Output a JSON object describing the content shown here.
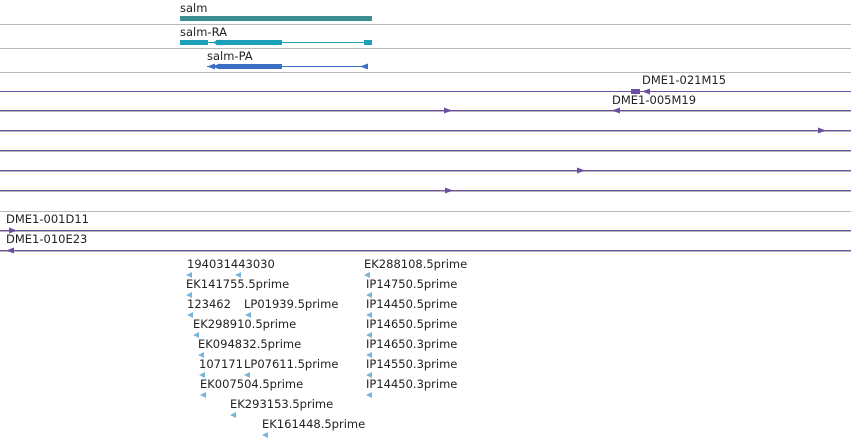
{
  "colors": {
    "gene": "#3a9090",
    "transcript_ra": "#1ba0b8",
    "transcript_pa": "#3a6fc4",
    "bac": "#6b4fa0",
    "est": "#7ab4d8",
    "separator": "#b8b8b8"
  },
  "genes": [
    {
      "label": "salm"
    },
    {
      "label": "salm-RA"
    },
    {
      "label": "salm-PA"
    }
  ],
  "clones": [
    {
      "label": "DME1-021M15"
    },
    {
      "label": "DME1-005M19"
    },
    {
      "label": "DME1-001D11"
    },
    {
      "label": "DME1-010E23"
    }
  ],
  "ests": [
    {
      "label": "194031443030"
    },
    {
      "label": "EK141755.5prime"
    },
    {
      "label": "123462"
    },
    {
      "label": "LP01939.5prime"
    },
    {
      "label": "EK298910.5prime"
    },
    {
      "label": "EK094832.5prime"
    },
    {
      "label": "107171"
    },
    {
      "label": "LP07611.5prime"
    },
    {
      "label": "EK007504.5prime"
    },
    {
      "label": "EK293153.5prime"
    },
    {
      "label": "EK161448.5prime"
    },
    {
      "label": "EK288108.5prime"
    },
    {
      "label": "IP14750.5prime"
    },
    {
      "label": "IP14450.5prime"
    },
    {
      "label": "IP14650.5prime"
    },
    {
      "label": "IP14650.3prime"
    },
    {
      "label": "IP14550.3prime"
    },
    {
      "label": "IP14450.3prime"
    }
  ]
}
